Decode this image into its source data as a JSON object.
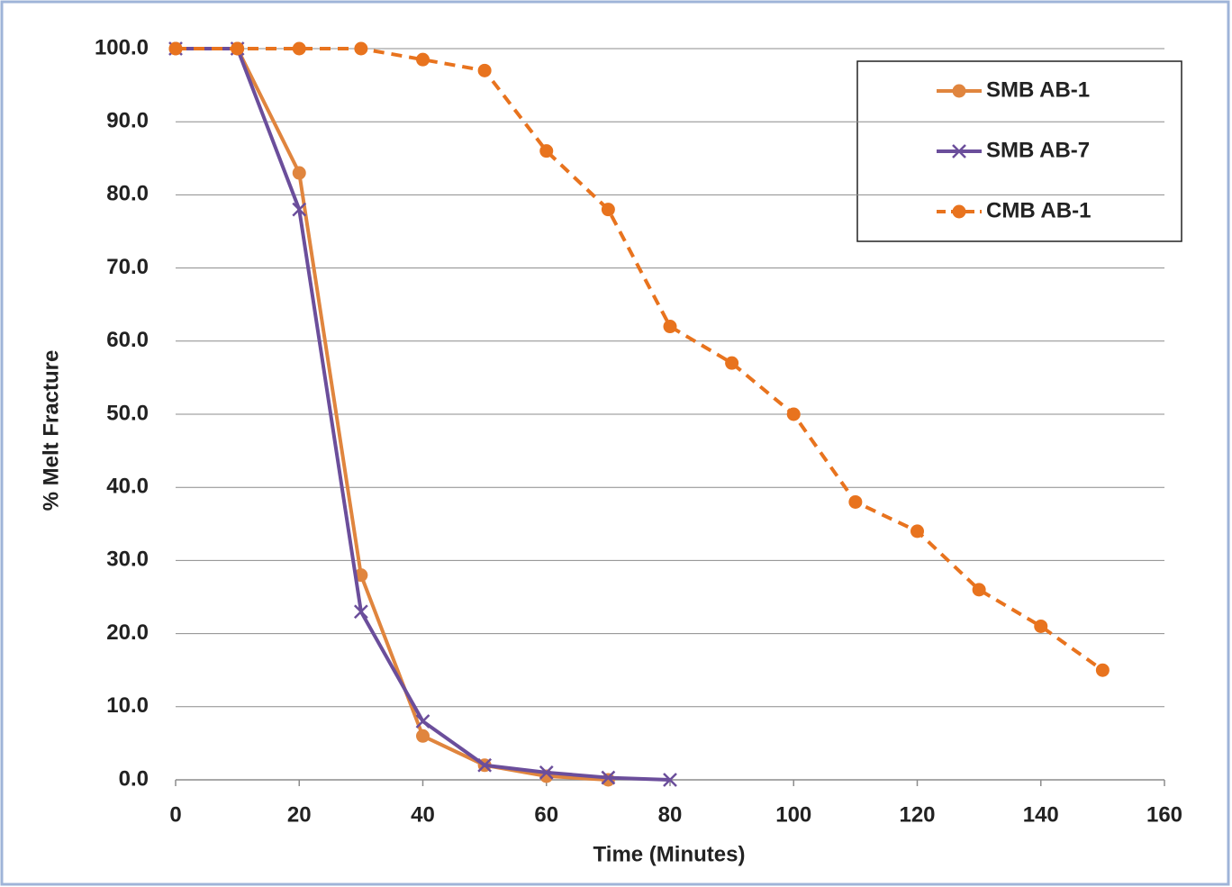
{
  "chart_data": {
    "type": "line",
    "xlabel": "Time (Minutes)",
    "ylabel": "% Melt Fracture",
    "xlim": [
      0,
      160
    ],
    "xticks": [
      0,
      20,
      40,
      60,
      80,
      100,
      120,
      140,
      160
    ],
    "ylim": [
      0,
      100
    ],
    "yticks": [
      {
        "value": 0,
        "label": "0.0"
      },
      {
        "value": 10,
        "label": "10.0"
      },
      {
        "value": 20,
        "label": "20.0"
      },
      {
        "value": 30,
        "label": "30.0"
      },
      {
        "value": 40,
        "label": "40.0"
      },
      {
        "value": 50,
        "label": "50.0"
      },
      {
        "value": 60,
        "label": "60.0"
      },
      {
        "value": 70,
        "label": "70.0"
      },
      {
        "value": 80,
        "label": "80.0"
      },
      {
        "value": 90,
        "label": "90.0"
      },
      {
        "value": 100,
        "label": "100.0"
      }
    ],
    "grid": true,
    "legend": "upper right",
    "series": [
      {
        "name": "SMB AB-1",
        "color": "#e0853e",
        "marker": "circle",
        "dashed": false,
        "x": [
          0,
          10,
          20,
          30,
          40,
          50,
          60,
          70
        ],
        "values": [
          100,
          100,
          83,
          28,
          6,
          2,
          0.5,
          0
        ]
      },
      {
        "name": "SMB AB-7",
        "color": "#6b4e9b",
        "marker": "x",
        "dashed": false,
        "x": [
          0,
          10,
          20,
          30,
          40,
          50,
          60,
          70,
          80
        ],
        "values": [
          100,
          100,
          78,
          23,
          8,
          2,
          1,
          0.3,
          0
        ]
      },
      {
        "name": "CMB AB-1",
        "color": "#e8731e",
        "marker": "circle",
        "dashed": true,
        "x": [
          0,
          10,
          20,
          30,
          40,
          50,
          60,
          70,
          80,
          90,
          100,
          110,
          120,
          130,
          140,
          150
        ],
        "values": [
          100,
          100,
          100,
          100,
          98.5,
          97,
          86,
          78,
          62,
          57,
          50,
          38,
          34,
          26,
          21,
          15
        ]
      }
    ]
  }
}
